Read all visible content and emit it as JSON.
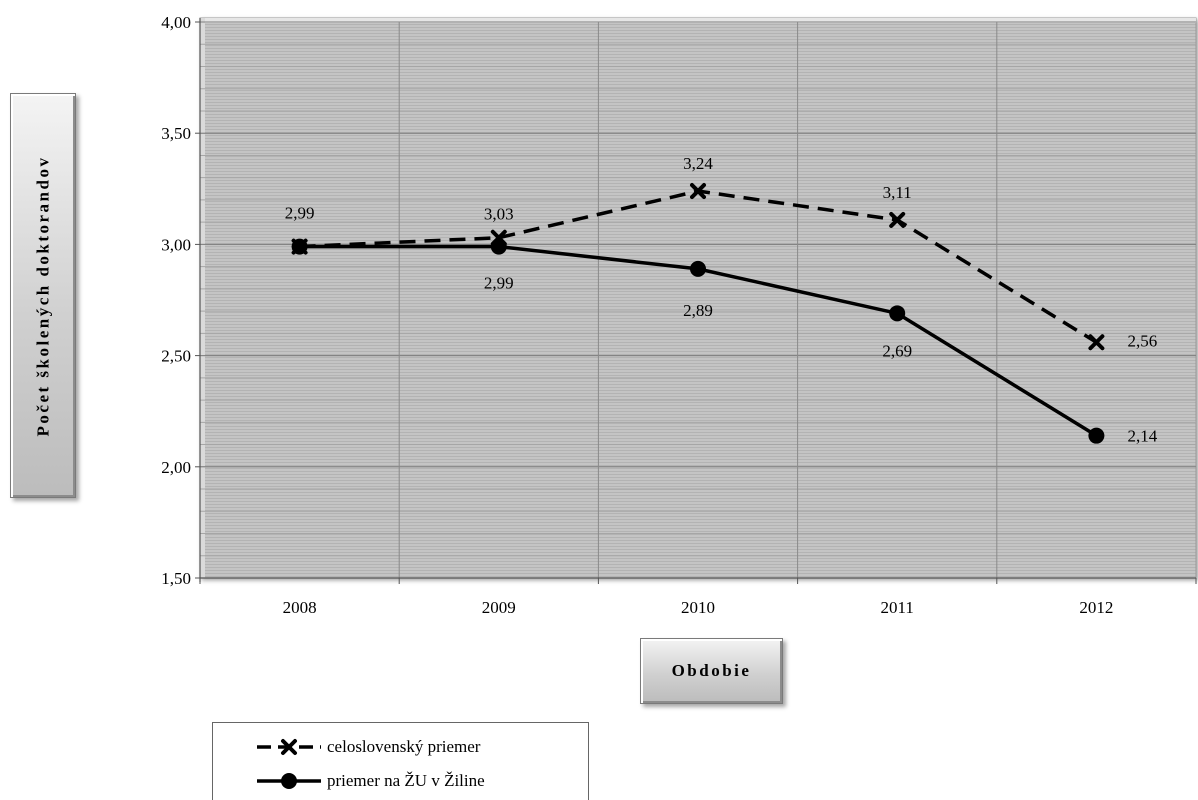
{
  "chart_data": {
    "type": "line",
    "xlabel": "Obdobie",
    "ylabel": "Počet školených doktorandov",
    "categories": [
      "2008",
      "2009",
      "2010",
      "2011",
      "2012"
    ],
    "ylim": [
      1.5,
      4.0
    ],
    "yticks": [
      "1,50",
      "2,00",
      "2,50",
      "3,00",
      "3,50",
      "4,00"
    ],
    "grid": true,
    "legend_position": "bottom-left",
    "series": [
      {
        "name": "celoslovenský priemer",
        "values": [
          2.99,
          3.03,
          3.24,
          3.11,
          2.56
        ],
        "labels": [
          "2,99",
          "3,03",
          "3,24",
          "3,11",
          "2,56"
        ],
        "style": "dashed",
        "marker": "x",
        "color": "#000000"
      },
      {
        "name": "priemer na ŽU v Žiline",
        "values": [
          2.99,
          2.99,
          2.89,
          2.69,
          2.14
        ],
        "labels": [
          "2,99",
          "2,99",
          "2,89",
          "2,69",
          "2,14"
        ],
        "style": "solid",
        "marker": "circle",
        "color": "#000000"
      }
    ]
  },
  "colors": {
    "plot_background": "#c4c4c4",
    "gridline": "#8f8f8f",
    "series_line": "#000000"
  }
}
